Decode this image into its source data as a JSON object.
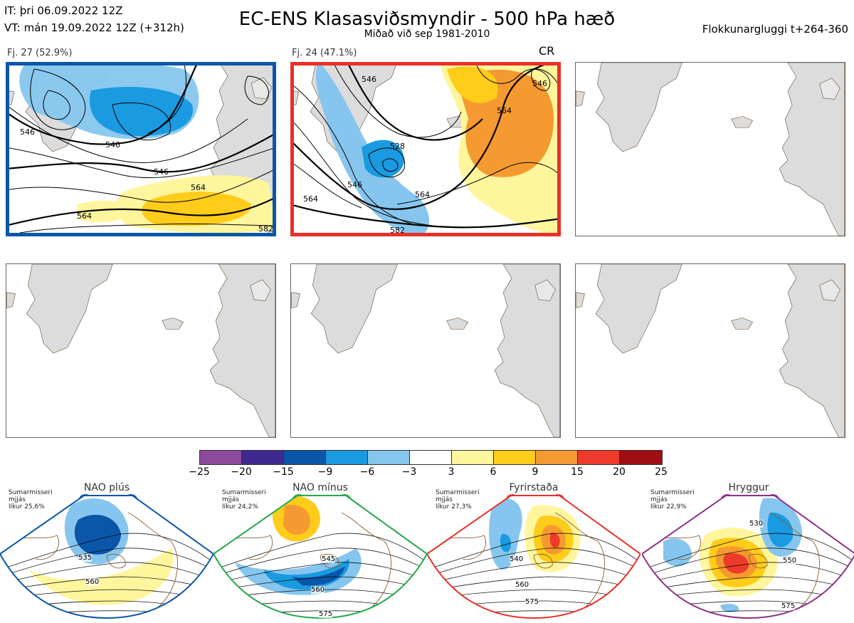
{
  "header": {
    "it": "IT: þri 06.09.2022 12Z",
    "vt": "VT: mán 19.09.2022 12Z  (+312h)",
    "title": "EC-ENS Klasasviðsmyndir - 500 hPa hæð",
    "subtitle": "Miðað við sep 1981-2010",
    "window": "Flokkunargluggi t+264-360"
  },
  "panels": [
    {
      "label": "Fj. 27 (52.9%)",
      "border_color": "#0a56a8",
      "contours": [
        "546",
        "546",
        "564",
        "546",
        "564",
        "582"
      ]
    },
    {
      "label": "Fj. 24 (47.1%)",
      "tag": "CR",
      "border_color": "#e8302a",
      "contours": [
        "564",
        "546",
        "528",
        "564",
        "546",
        "564",
        "582",
        "546"
      ]
    },
    {
      "label": ""
    },
    {
      "label": ""
    },
    {
      "label": ""
    },
    {
      "label": ""
    }
  ],
  "colorbar": {
    "colors": [
      "#8c4a9c",
      "#3e2a8f",
      "#0a56a8",
      "#1a9ae0",
      "#86c6ee",
      "#ffffff",
      "#fff59d",
      "#ffcc1a",
      "#f59a30",
      "#ee3a2a",
      "#a00d12"
    ],
    "labels": [
      "−25",
      "−20",
      "−15",
      "−9",
      "−6",
      "−3",
      "3",
      "6",
      "9",
      "15",
      "20",
      "25"
    ]
  },
  "regimes": [
    {
      "name": "NAO plús",
      "season": "Sumarmisseri",
      "freq": "mjjás",
      "prob": "líkur 25,6%",
      "color": "#0a56a8",
      "contours": [
        "535",
        "560"
      ]
    },
    {
      "name": "NAO mínus",
      "season": "Sumarmisseri",
      "freq": "mjjás",
      "prob": "líkur 24,2%",
      "color": "#22a84a",
      "contours": [
        "545",
        "560",
        "575"
      ]
    },
    {
      "name": "Fyrirstaða",
      "season": "Sumarmisseri",
      "freq": "mjjás",
      "prob": "líkur 27,3%",
      "color": "#e8302a",
      "contours": [
        "540",
        "560",
        "575"
      ]
    },
    {
      "name": "Hryggur",
      "season": "Sumarmisseri",
      "freq": "mjjás",
      "prob": "líkur 22,9%",
      "color": "#8e2f8c",
      "contours": [
        "530",
        "550",
        "575"
      ]
    }
  ]
}
